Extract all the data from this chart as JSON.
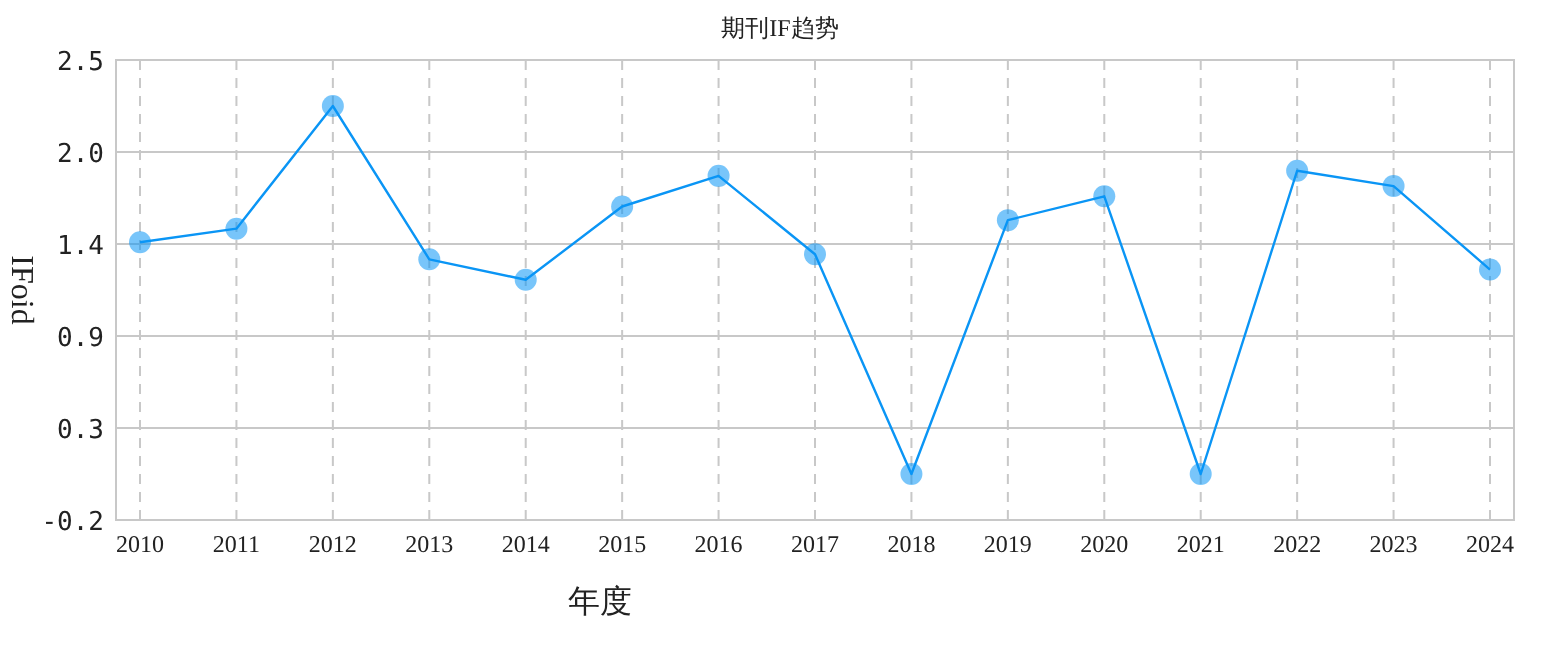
{
  "chart_data": {
    "type": "line",
    "title": "期刊IF趋势",
    "xlabel": "年度",
    "ylabel": "IFoid",
    "categories": [
      "2010",
      "2011",
      "2012",
      "2013",
      "2014",
      "2015",
      "2016",
      "2017",
      "2018",
      "2019",
      "2020",
      "2021",
      "2022",
      "2023",
      "2024"
    ],
    "series": [
      {
        "color": "#0a95f5",
        "values": [
          1.43,
          1.51,
          2.23,
          1.33,
          1.21,
          1.64,
          1.82,
          1.36,
          0.07,
          1.56,
          1.7,
          0.07,
          1.85,
          1.76,
          1.27
        ]
      }
    ],
    "ylim": [
      -0.2,
      2.5
    ],
    "yticks": [
      -0.2,
      {
        "value": 0.34,
        "label": "0.3"
      },
      {
        "value": 0.88,
        "label": "0.9"
      },
      {
        "value": 1.42,
        "label": "1.4"
      },
      {
        "value": 1.96,
        "label": "2.0"
      },
      2.5
    ],
    "grid": true,
    "marker": "circle",
    "line_style": "solid"
  }
}
